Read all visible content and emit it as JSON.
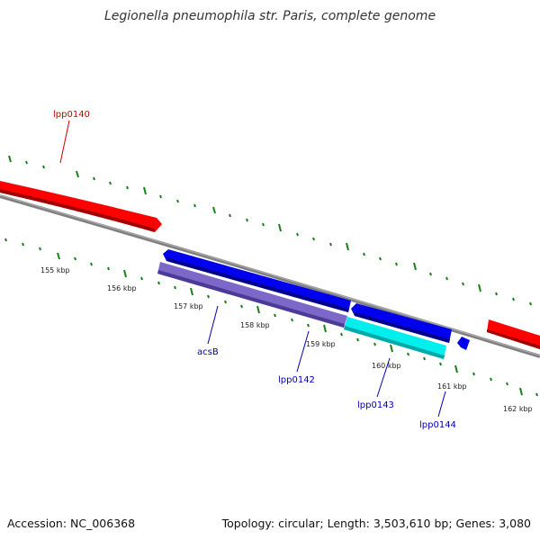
{
  "title": "Legionella pneumophila str. Paris, complete genome",
  "footer": {
    "accession": "Accession: NC_006368",
    "summary": "Topology: circular; Length: 3,503,610 bp; Genes: 3,080"
  },
  "ruler": {
    "labels": [
      "155 kbp",
      "156 kbp",
      "157 kbp",
      "158 kbp",
      "159 kbp",
      "160 kbp",
      "161 kbp",
      "162 kbp"
    ]
  },
  "genes": [
    {
      "name": "lpp0140",
      "color": "#ff0000"
    },
    {
      "name": "acsB",
      "color": "#7b68c8"
    },
    {
      "name": "lpp0142",
      "color": "#0000ee"
    },
    {
      "name": "lpp0143",
      "color": "#00e5ee"
    },
    {
      "name": "lpp0144",
      "color": "#0000ee"
    }
  ],
  "colors": {
    "backbone": "#808080",
    "tick": "#1a7f1a",
    "forward_label": "#cc0000",
    "reverse_label": "#0000aa"
  }
}
